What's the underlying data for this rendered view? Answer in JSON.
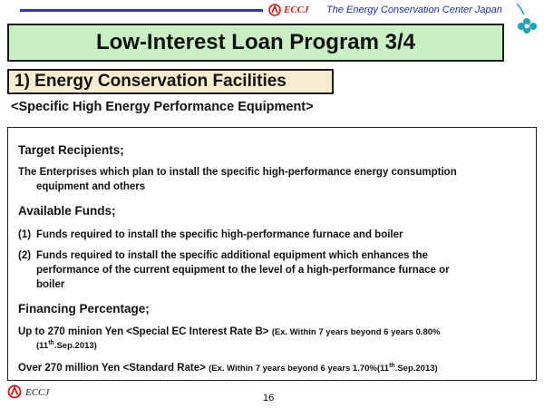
{
  "header": {
    "brand": "ECCJ",
    "organization": "The Energy Conservation Center Japan"
  },
  "title": "Low-Interest Loan Program  3/4",
  "section_title": "1) Energy Conservation Facilities",
  "subheading": "<Specific High Energy Performance Equipment>",
  "target": {
    "heading": "Target  Recipients;",
    "line1": "The Enterprises which plan to install the specific high-performance energy consumption",
    "line2": "equipment  and others"
  },
  "funds": {
    "heading": "Available Funds;",
    "item1_num": "(1)",
    "item1": "Funds required to install the specific high-performance  furnace and boiler",
    "item2_num": "(2)",
    "item2_line1": "Funds required to install the specific additional equipment which enhances the",
    "item2_line2": "performance of the current equipment to the level of a high-performance furnace or",
    "item2_line3": "boiler"
  },
  "financing": {
    "heading": "Financing Percentage;",
    "row1_main": "Up to 270 minion Yen  <Special EC Interest Rate B>",
    "row1_note": "(Ex. Within 7 years beyond  6 years 0.80%",
    "row1_date_pre": "(11",
    "row1_date_sup": "th",
    "row1_date_post": ".Sep.2013)",
    "row2_main": "Over  270 million Yen  <Standard Rate>",
    "row2_note": "(Ex. Within 7 years beyond  6 years 1.70%(11",
    "row2_date_sup": "th",
    "row2_date_post": ".Sep.2013)"
  },
  "footer": {
    "brand": "ECCJ",
    "page_number": "16"
  },
  "colors": {
    "title_bg": "#c9f0c5",
    "section_bg": "#f6ecd0",
    "brand_red": "#d01818",
    "org_blue": "#1a2fa0"
  }
}
